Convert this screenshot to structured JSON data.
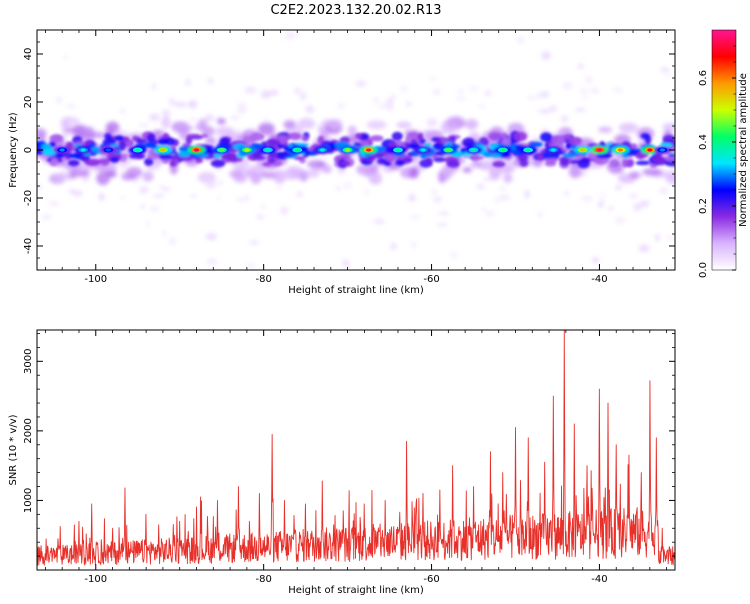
{
  "figure_title": "C2E2.2023.132.20.02.R13",
  "chart_data": [
    {
      "type": "heatmap",
      "name": "spectrogram",
      "xlabel": "Height of straight line (km)",
      "ylabel": "Frequency (Hz)",
      "xlim": [
        -107,
        -31
      ],
      "ylim": [
        -50,
        50
      ],
      "x_ticks": [
        -100,
        -80,
        -60,
        -40
      ],
      "y_ticks": [
        -40,
        -20,
        0,
        20,
        40
      ],
      "colorbar": {
        "label": "Normalized spectral amplitude",
        "range": [
          0.0,
          0.75
        ],
        "ticks": [
          0.0,
          0.2,
          0.4,
          0.6
        ],
        "colors": [
          "#ffffff",
          "#d9b3ff",
          "#8a2be2",
          "#0000ff",
          "#00e5ff",
          "#00ff66",
          "#ccff00",
          "#ff9900",
          "#ff0000",
          "#ff1493"
        ]
      },
      "band": {
        "center_hz": 0,
        "half_width_hz": 6
      },
      "hotspots": [
        {
          "x": -104.0,
          "value": 0.3
        },
        {
          "x": -101.5,
          "value": 0.35
        },
        {
          "x": -98.5,
          "value": 0.28
        },
        {
          "x": -95.0,
          "value": 0.4
        },
        {
          "x": -92.0,
          "value": 0.55
        },
        {
          "x": -88.0,
          "value": 0.7
        },
        {
          "x": -85.0,
          "value": 0.45
        },
        {
          "x": -82.0,
          "value": 0.5
        },
        {
          "x": -79.5,
          "value": 0.38
        },
        {
          "x": -76.0,
          "value": 0.42
        },
        {
          "x": -73.0,
          "value": 0.35
        },
        {
          "x": -70.0,
          "value": 0.48
        },
        {
          "x": -67.5,
          "value": 0.65
        },
        {
          "x": -64.0,
          "value": 0.4
        },
        {
          "x": -61.0,
          "value": 0.35
        },
        {
          "x": -58.0,
          "value": 0.45
        },
        {
          "x": -55.0,
          "value": 0.38
        },
        {
          "x": -51.5,
          "value": 0.42
        },
        {
          "x": -48.5,
          "value": 0.4
        },
        {
          "x": -45.5,
          "value": 0.35
        },
        {
          "x": -42.0,
          "value": 0.55
        },
        {
          "x": -40.0,
          "value": 0.72
        },
        {
          "x": -37.5,
          "value": 0.6
        },
        {
          "x": -34.0,
          "value": 0.68
        },
        {
          "x": -32.5,
          "value": 0.3
        }
      ]
    },
    {
      "type": "line",
      "name": "snr",
      "xlabel": "Height of straight line (km)",
      "ylabel": "SNR (10 * v/v)",
      "xlim": [
        -107,
        -31
      ],
      "ylim": [
        0,
        3450
      ],
      "x_ticks": [
        -100,
        -80,
        -60,
        -40
      ],
      "y_ticks": [
        1000,
        2000,
        3000
      ],
      "series_color": "#e8302a",
      "peaks": [
        {
          "x": -106.5,
          "y": 350
        },
        {
          "x": -104.5,
          "y": 450
        },
        {
          "x": -102.0,
          "y": 700
        },
        {
          "x": -100.5,
          "y": 950
        },
        {
          "x": -98.0,
          "y": 600
        },
        {
          "x": -96.5,
          "y": 1180
        },
        {
          "x": -94.0,
          "y": 800
        },
        {
          "x": -92.5,
          "y": 650
        },
        {
          "x": -90.0,
          "y": 700
        },
        {
          "x": -87.5,
          "y": 1050
        },
        {
          "x": -85.5,
          "y": 1000
        },
        {
          "x": -83.0,
          "y": 1200
        },
        {
          "x": -80.5,
          "y": 1100
        },
        {
          "x": -79.0,
          "y": 1950
        },
        {
          "x": -77.5,
          "y": 1000
        },
        {
          "x": -75.0,
          "y": 950
        },
        {
          "x": -73.0,
          "y": 1280
        },
        {
          "x": -70.5,
          "y": 850
        },
        {
          "x": -68.0,
          "y": 950
        },
        {
          "x": -65.5,
          "y": 1000
        },
        {
          "x": -63.0,
          "y": 1850
        },
        {
          "x": -61.0,
          "y": 1100
        },
        {
          "x": -59.0,
          "y": 1150
        },
        {
          "x": -57.5,
          "y": 1500
        },
        {
          "x": -55.0,
          "y": 1200
        },
        {
          "x": -53.0,
          "y": 1700
        },
        {
          "x": -51.5,
          "y": 1400
        },
        {
          "x": -50.0,
          "y": 2050
        },
        {
          "x": -48.5,
          "y": 1900
        },
        {
          "x": -46.5,
          "y": 1550
        },
        {
          "x": -45.5,
          "y": 2500
        },
        {
          "x": -44.2,
          "y": 3450
        },
        {
          "x": -43.0,
          "y": 2100
        },
        {
          "x": -41.5,
          "y": 1500
        },
        {
          "x": -40.0,
          "y": 2600
        },
        {
          "x": -39.0,
          "y": 2400
        },
        {
          "x": -38.0,
          "y": 1800
        },
        {
          "x": -36.5,
          "y": 1650
        },
        {
          "x": -35.0,
          "y": 1400
        },
        {
          "x": -34.0,
          "y": 2720
        },
        {
          "x": -33.2,
          "y": 1900
        },
        {
          "x": -32.5,
          "y": 600
        },
        {
          "x": -31.5,
          "y": 300
        }
      ]
    }
  ]
}
